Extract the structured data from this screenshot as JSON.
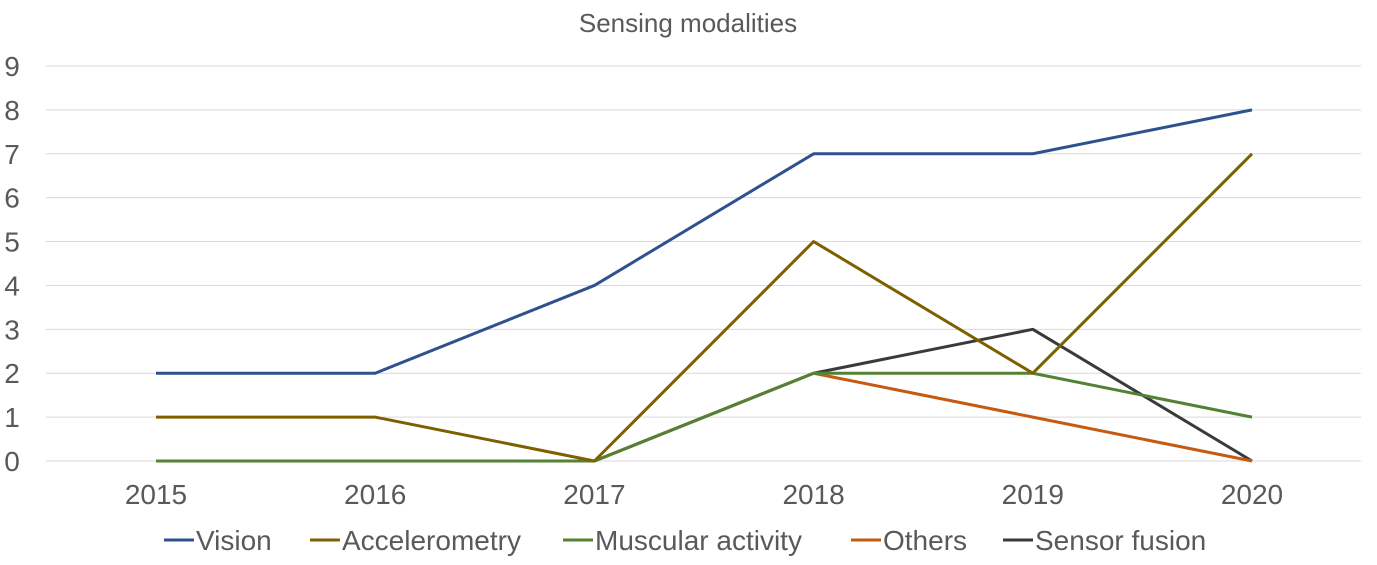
{
  "chart_data": {
    "type": "line",
    "title": "Sensing modalities",
    "xlabel": "",
    "ylabel": "",
    "categories": [
      "2015",
      "2016",
      "2017",
      "2018",
      "2019",
      "2020"
    ],
    "ylim": [
      0,
      9
    ],
    "yticks": [
      0,
      1,
      2,
      3,
      4,
      5,
      6,
      7,
      8,
      9
    ],
    "grid": true,
    "legend_position": "bottom",
    "series": [
      {
        "name": "Vision",
        "color": "#2f528f",
        "values": [
          2,
          2,
          4,
          7,
          7,
          8
        ]
      },
      {
        "name": "Accelerometry",
        "color": "#7f6000",
        "values": [
          1,
          1,
          0,
          5,
          2,
          7
        ]
      },
      {
        "name": "Muscular activity",
        "color": "#548235",
        "values": [
          0,
          0,
          0,
          2,
          2,
          1
        ]
      },
      {
        "name": "Others",
        "color": "#c55a11",
        "values": [
          0,
          0,
          0,
          2,
          1,
          0
        ]
      },
      {
        "name": "Sensor fusion",
        "color": "#3a3a3a",
        "values": [
          0,
          0,
          0,
          2,
          3,
          0
        ]
      }
    ]
  }
}
